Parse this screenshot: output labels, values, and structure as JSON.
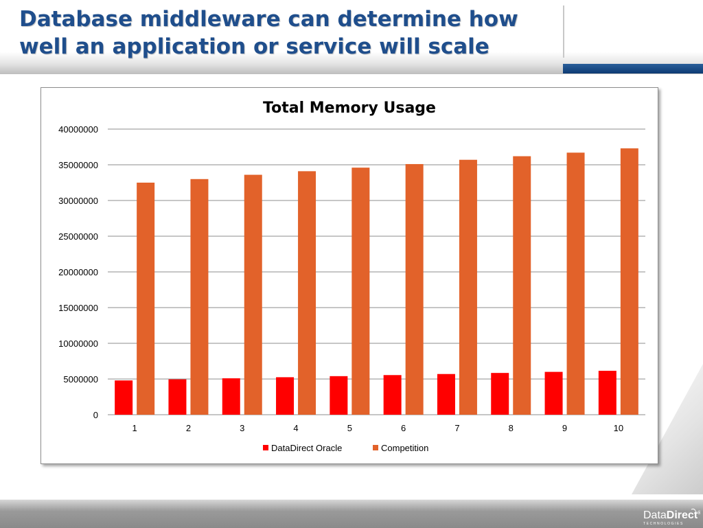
{
  "slide": {
    "title_line1": "Database middleware can determine how",
    "title_line2": "well an application or service will scale"
  },
  "colors": {
    "title": "#1f4e8c",
    "accent_bar": "#0d3a73",
    "series_datadirect": "#ff0000",
    "series_competition": "#e2622a"
  },
  "logo": {
    "word_regular": "Data",
    "word_bold": "Direct",
    "registered": "®",
    "subtitle": "TECHNOLOGIES"
  },
  "chart_data": {
    "type": "bar",
    "title": "Total Memory Usage",
    "xlabel": "",
    "ylabel": "",
    "categories": [
      "1",
      "2",
      "3",
      "4",
      "5",
      "6",
      "7",
      "8",
      "9",
      "10"
    ],
    "series": [
      {
        "name": "DataDirect Oracle",
        "color": "#ff0000",
        "values": [
          4800000,
          4950000,
          5100000,
          5250000,
          5400000,
          5550000,
          5700000,
          5850000,
          6000000,
          6150000
        ]
      },
      {
        "name": "Competition",
        "color": "#e2622a",
        "values": [
          32500000,
          33000000,
          33600000,
          34100000,
          34600000,
          35100000,
          35700000,
          36200000,
          36700000,
          37300000
        ]
      }
    ],
    "ylim": [
      0,
      40000000
    ],
    "yticks": [
      "0",
      "5000000",
      "10000000",
      "15000000",
      "20000000",
      "25000000",
      "30000000",
      "35000000",
      "40000000"
    ],
    "grid": true,
    "legend_position": "bottom"
  }
}
